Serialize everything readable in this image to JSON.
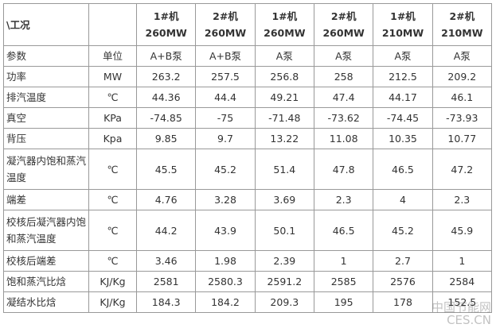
{
  "table": {
    "corner": "\\工况",
    "columns": [
      {
        "line1": "1#机",
        "line2": "260MW"
      },
      {
        "line1": "2#机",
        "line2": "260MW"
      },
      {
        "line1": "1#机",
        "line2": "260MW"
      },
      {
        "line1": "2#机",
        "line2": "260MW"
      },
      {
        "line1": "1#机",
        "line2": "210MW"
      },
      {
        "line1": "2#机",
        "line2": "210MW"
      }
    ],
    "rows": [
      [
        "参数",
        "单位",
        "A+B泵",
        "A+B泵",
        "A泵",
        "A泵",
        "A泵",
        "A泵"
      ],
      [
        "功率",
        "MW",
        "263.2",
        "257.5",
        "256.8",
        "258",
        "212.5",
        "209.2"
      ],
      [
        "排汽温度",
        "℃",
        "44.36",
        "44.4",
        "49.21",
        "47.4",
        "44.17",
        "46.1"
      ],
      [
        "真空",
        "KPa",
        "-74.85",
        "-75",
        "-71.48",
        "-73.62",
        "-74.45",
        "-73.93"
      ],
      [
        "背压",
        "Kpa",
        "9.85",
        "9.7",
        "13.22",
        "11.08",
        "10.35",
        "10.77"
      ],
      [
        "凝汽器内饱和蒸汽温度",
        "℃",
        "45.5",
        "45.2",
        "51.4",
        "47.8",
        "46.5",
        "47.2"
      ],
      [
        "端差",
        "℃",
        "4.76",
        "3.28",
        "3.69",
        "2.3",
        "4",
        "2.3"
      ],
      [
        "校核后凝汽器内饱和蒸汽温度",
        "℃",
        "44.2",
        "43.9",
        "50.1",
        "46.5",
        "45.2",
        "45.9"
      ],
      [
        "校核后端差",
        "℃",
        "3.46",
        "1.98",
        "2.39",
        "1",
        "2.7",
        "1"
      ],
      [
        "饱和蒸汽比焓",
        "KJ/Kg",
        "2581",
        "2580.3",
        "2591.2",
        "2585",
        "2576",
        "2584"
      ],
      [
        "凝结水比焓",
        "KJ/Kg",
        "184.3",
        "184.2",
        "209.3",
        "195",
        "178",
        "152.5"
      ]
    ],
    "watermark": {
      "name": "中国节能网",
      "site": "CES.CN"
    }
  }
}
